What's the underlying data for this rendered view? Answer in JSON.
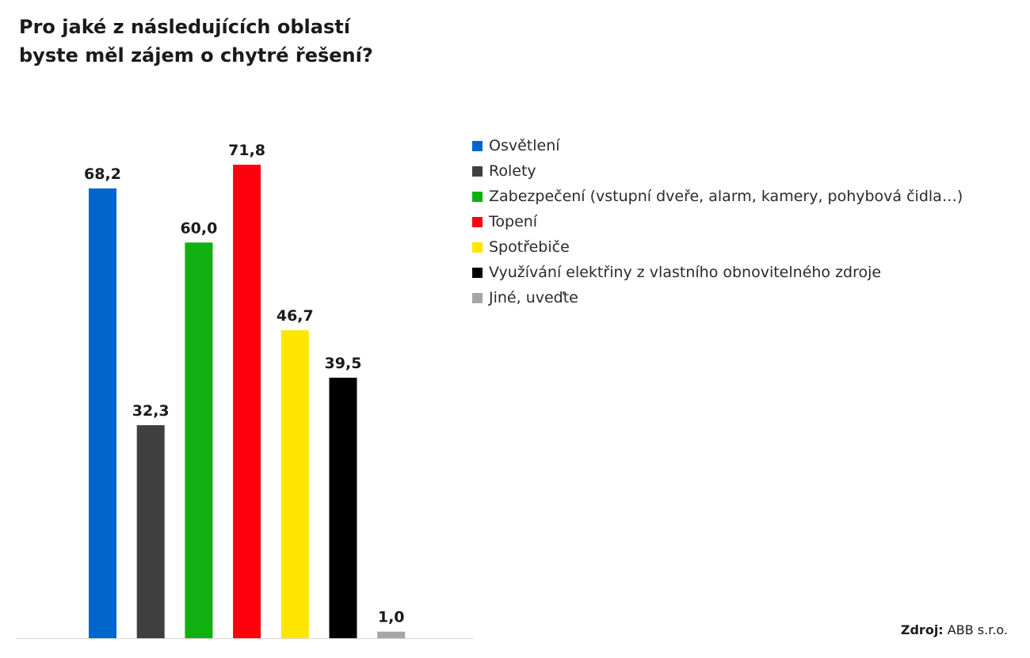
{
  "title": {
    "line1": "Pro jaké z následujících oblastí",
    "line2": "byste měl zájem o chytré řešení?"
  },
  "chart_data": {
    "type": "bar",
    "title": "Pro jaké z následujících oblastí byste měl zájem o chytré řešení?",
    "categories": [
      "Osvětlení",
      "Rolety",
      "Zabezpečení (vstupní dveře, alarm, kamery, pohybová čidla…)",
      "Topení",
      "Spotřebiče",
      "Využívání elektřiny z vlastního obnovitelného zdroje",
      "Jiné, uveďte"
    ],
    "values": [
      68.2,
      32.3,
      60.0,
      71.8,
      46.7,
      39.5,
      1.0
    ],
    "value_labels": [
      "68,2",
      "32,3",
      "60,0",
      "71,8",
      "46,7",
      "39,5",
      "1,0"
    ],
    "colors": [
      "#0066cc",
      "#404040",
      "#10b010",
      "#ff0010",
      "#ffe600",
      "#000000",
      "#a6a6a6"
    ],
    "ylim": [
      0,
      71.8
    ],
    "grid": false,
    "legend_position": "right"
  },
  "source": {
    "key": "Zdroj:",
    "value": "ABB s.r.o."
  }
}
